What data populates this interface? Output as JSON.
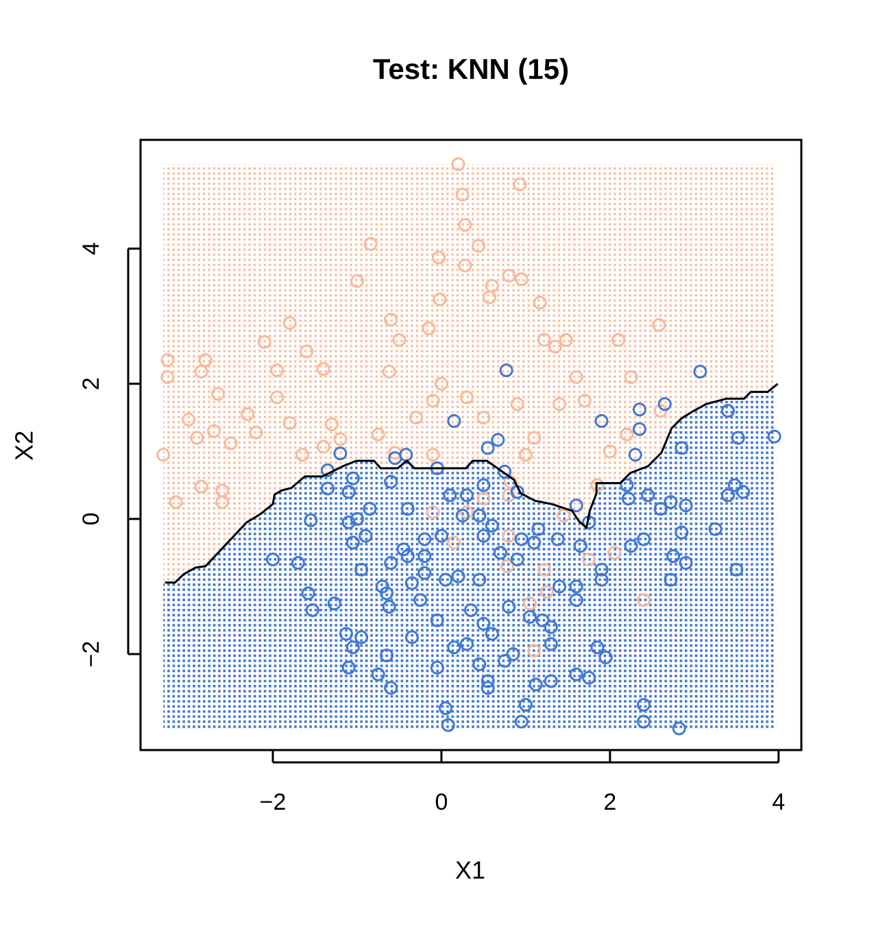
{
  "chart_data": {
    "type": "scatter",
    "title": "Test: KNN (15)",
    "x_label": "X1",
    "y_label": "X2",
    "xlim": [
      -3.57,
      4.27
    ],
    "ylim": [
      -3.42,
      5.61
    ],
    "xticks": [
      {
        "value": -2,
        "label": "−2"
      },
      0,
      2,
      4
    ],
    "yticks": [
      {
        "value": -2,
        "label": "−2"
      },
      0,
      2,
      4
    ],
    "grid_xlim": [
      -3.3,
      3.97
    ],
    "grid_ylim": [
      -3.12,
      5.25
    ],
    "region_colors": [
      "#f7b99a",
      "#3f78d6"
    ],
    "boundary": {
      "color": "#000000",
      "x": [
        -3.28,
        -3.16,
        -3.06,
        -2.92,
        -2.8,
        -2.31,
        -2.15,
        -2.0,
        -1.98,
        -1.9,
        -1.78,
        -1.62,
        -1.41,
        -1.17,
        -1.01,
        -0.8,
        -0.72,
        -0.52,
        -0.41,
        -0.32,
        0.29,
        0.37,
        0.54,
        0.86,
        0.94,
        1.11,
        1.31,
        1.43,
        1.55,
        1.63,
        1.72,
        1.76,
        1.84,
        1.84,
        2.12,
        2.24,
        2.45,
        2.61,
        2.73,
        2.85,
        2.98,
        3.14,
        3.38,
        3.59,
        3.67,
        3.87,
        3.99
      ],
      "y": [
        -0.94,
        -0.94,
        -0.82,
        -0.72,
        -0.7,
        -0.05,
        0.07,
        0.22,
        0.36,
        0.42,
        0.46,
        0.63,
        0.63,
        0.78,
        0.86,
        0.86,
        0.75,
        0.75,
        0.86,
        0.75,
        0.75,
        0.86,
        0.86,
        0.58,
        0.38,
        0.27,
        0.22,
        0.17,
        0.12,
        -0.03,
        -0.13,
        0.12,
        0.38,
        0.53,
        0.53,
        0.68,
        0.78,
        0.98,
        1.34,
        1.49,
        1.59,
        1.7,
        1.78,
        1.78,
        1.88,
        1.88,
        2.0
      ]
    },
    "series": [
      {
        "color": "#f7b99a",
        "x": [
          0.2,
          0.93,
          0.25,
          0.28,
          -0.84,
          0.44,
          -0.03,
          0.28,
          0.8,
          0.95,
          -1.0,
          0.6,
          0.57,
          -0.02,
          1.17,
          -0.6,
          2.58,
          -1.8,
          -0.15,
          -0.5,
          -2.1,
          1.22,
          1.48,
          2.1,
          -1.6,
          1.35,
          -3.25,
          -2.8,
          -1.4,
          -1.95,
          -2.85,
          -0.62,
          -3.25,
          0.0,
          1.6,
          2.25,
          -2.65,
          -1.95,
          -0.1,
          0.9,
          1.4,
          1.7,
          -2.3,
          -1.8,
          -3.0,
          -2.2,
          -1.3,
          -2.7,
          -2.9,
          -0.75,
          -1.2,
          -2.5,
          -1.4,
          -1.65,
          -0.1,
          -3.3,
          -0.55,
          2.0,
          -2.85,
          -2.6,
          -3.15,
          -2.6,
          0.82,
          0.5,
          1.85,
          -0.1,
          0.8,
          0.3,
          1.45,
          0.15,
          1.75,
          2.05,
          0.78,
          1.22,
          1.25,
          1.05,
          2.4,
          1.1,
          0.8,
          1.1,
          0.5,
          0.3,
          -0.3,
          2.6,
          2.2,
          1.0
        ],
        "y": [
          5.25,
          4.95,
          4.8,
          4.35,
          4.07,
          4.04,
          3.87,
          3.75,
          3.6,
          3.55,
          3.52,
          3.45,
          3.28,
          3.25,
          3.2,
          2.95,
          2.87,
          2.9,
          2.82,
          2.65,
          2.62,
          2.65,
          2.65,
          2.65,
          2.48,
          2.55,
          2.35,
          2.35,
          2.22,
          2.2,
          2.18,
          2.18,
          2.1,
          2.0,
          2.1,
          2.1,
          1.85,
          1.8,
          1.75,
          1.7,
          1.7,
          1.75,
          1.55,
          1.42,
          1.47,
          1.28,
          1.4,
          1.3,
          1.2,
          1.25,
          1.18,
          1.12,
          1.07,
          0.95,
          0.95,
          0.95,
          0.98,
          1.0,
          0.48,
          0.42,
          0.25,
          0.25,
          0.55,
          0.3,
          0.5,
          0.1,
          -0.25,
          0.1,
          0.05,
          -0.35,
          -0.6,
          -0.5,
          -0.7,
          -0.75,
          -1.08,
          -1.25,
          -1.2,
          -1.95,
          0.35,
          1.2,
          1.5,
          1.8,
          1.5,
          1.6,
          1.25,
          0.95
        ]
      },
      {
        "color": "#3f78d6",
        "x": [
          3.07,
          3.95,
          3.4,
          3.52,
          2.65,
          2.35,
          2.35,
          2.3,
          2.85,
          0.77,
          0.15,
          1.9,
          -1.2,
          -0.42,
          -0.55,
          -1.35,
          -1.05,
          -0.6,
          -1.35,
          -1.1,
          -0.85,
          -0.4,
          -1.55,
          -1.1,
          -1.0,
          -0.9,
          -1.05,
          -2.0,
          -1.7,
          -0.95,
          -0.4,
          -0.6,
          -0.35,
          -0.7,
          -0.65,
          -0.62,
          -1.58,
          -1.53,
          -1.27,
          -1.13,
          -0.95,
          -1.05,
          -1.1,
          -0.75,
          -0.65,
          -0.6,
          -0.35,
          -0.25,
          -0.05,
          -0.05,
          0.05,
          0.08,
          0.15,
          0.3,
          0.45,
          0.55,
          0.55,
          0.6,
          0.75,
          0.85,
          0.95,
          1.0,
          1.12,
          1.3,
          1.3,
          1.6,
          1.75,
          1.85,
          1.95,
          1.9,
          1.6,
          1.6,
          1.9,
          2.4,
          2.4,
          2.82,
          2.72,
          2.85,
          2.9,
          2.75,
          3.5,
          3.25,
          3.4,
          3.48,
          3.58,
          2.9,
          2.72,
          2.6,
          2.45,
          2.4,
          2.25,
          2.22,
          2.2,
          1.75,
          1.65,
          1.6,
          1.38,
          1.15,
          0.95,
          0.9,
          0.75,
          0.67,
          0.55,
          0.5,
          0.3,
          0.1,
          -0.05,
          0.25,
          0.45,
          0.5,
          0.7,
          0.8,
          0.9,
          0.45,
          0.2,
          0.05,
          -0.2,
          0.35,
          0.5,
          1.05,
          1.2,
          1.3,
          1.4,
          1.1,
          0.6,
          0.0,
          -0.2,
          -0.2,
          -0.45
        ],
        "y": [
          2.18,
          1.22,
          1.6,
          1.2,
          1.7,
          1.62,
          1.33,
          0.95,
          1.05,
          2.2,
          1.45,
          1.45,
          0.97,
          0.95,
          0.9,
          0.72,
          0.6,
          0.55,
          0.45,
          0.4,
          0.15,
          0.15,
          -0.02,
          -0.05,
          0.0,
          -0.25,
          -0.35,
          -0.6,
          -0.65,
          -0.75,
          -0.55,
          -0.65,
          -0.95,
          -1.0,
          -1.1,
          -1.3,
          -1.1,
          -1.35,
          -1.25,
          -1.7,
          -1.75,
          -1.9,
          -2.2,
          -2.3,
          -2.02,
          -2.5,
          -1.75,
          -1.2,
          -1.5,
          -2.2,
          -2.8,
          -3.05,
          -1.9,
          -1.85,
          -2.15,
          -2.4,
          -2.5,
          -1.7,
          -2.1,
          -2.0,
          -3.0,
          -2.75,
          -2.45,
          -2.4,
          -1.85,
          -2.3,
          -2.35,
          -1.9,
          -2.05,
          -0.9,
          -1.0,
          -1.2,
          -0.75,
          -2.75,
          -3.0,
          -3.1,
          -0.9,
          -0.2,
          -0.65,
          -0.55,
          -0.75,
          -0.15,
          0.35,
          0.5,
          0.4,
          0.2,
          0.25,
          0.15,
          0.35,
          -0.3,
          -0.4,
          0.3,
          0.5,
          -0.05,
          -0.4,
          0.2,
          -0.3,
          -0.15,
          -0.3,
          0.4,
          0.7,
          1.17,
          1.05,
          0.5,
          0.35,
          0.35,
          0.75,
          0.05,
          0.05,
          -0.25,
          -0.5,
          -1.3,
          -0.6,
          -0.9,
          -0.85,
          -0.9,
          -0.8,
          -1.35,
          -1.55,
          -1.45,
          -1.5,
          -1.6,
          -1.0,
          -0.35,
          -0.1,
          -0.25,
          -0.3,
          -0.55,
          -0.45
        ]
      }
    ]
  }
}
